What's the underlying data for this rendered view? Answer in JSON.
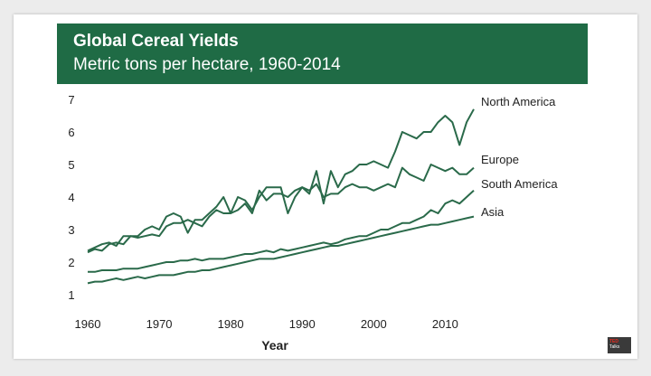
{
  "chart_data": {
    "type": "line",
    "title": "Global Cereal Yields",
    "subtitle": "Metric tons per hectare, 1960-2014",
    "xlabel": "Year",
    "ylabel": "",
    "xlim": [
      1960,
      2014
    ],
    "ylim": [
      0.5,
      7.2
    ],
    "x_ticks": [
      1960,
      1970,
      1980,
      1990,
      2000,
      2010
    ],
    "y_ticks": [
      1,
      2,
      3,
      4,
      5,
      6,
      7
    ],
    "grid": false,
    "legend": "labels at line ends",
    "line_color": "#2a6a4a",
    "x": [
      1960,
      1961,
      1962,
      1963,
      1964,
      1965,
      1966,
      1967,
      1968,
      1969,
      1970,
      1971,
      1972,
      1973,
      1974,
      1975,
      1976,
      1977,
      1978,
      1979,
      1980,
      1981,
      1982,
      1983,
      1984,
      1985,
      1986,
      1987,
      1988,
      1989,
      1990,
      1991,
      1992,
      1993,
      1994,
      1995,
      1996,
      1997,
      1998,
      1999,
      2000,
      2001,
      2002,
      2003,
      2004,
      2005,
      2006,
      2007,
      2008,
      2009,
      2010,
      2011,
      2012,
      2013,
      2014
    ],
    "series": [
      {
        "name": "North America",
        "values": [
          2.35,
          2.45,
          2.55,
          2.6,
          2.5,
          2.8,
          2.8,
          2.8,
          3.0,
          3.1,
          3.0,
          3.4,
          3.5,
          3.4,
          2.9,
          3.3,
          3.3,
          3.5,
          3.7,
          4.0,
          3.5,
          4.0,
          3.9,
          3.6,
          4.0,
          4.3,
          4.3,
          4.3,
          3.5,
          4.0,
          4.3,
          4.1,
          4.8,
          3.8,
          4.8,
          4.3,
          4.7,
          4.8,
          5.0,
          5.0,
          5.1,
          5.0,
          4.9,
          5.4,
          6.0,
          5.9,
          5.8,
          6.0,
          6.0,
          6.3,
          6.5,
          6.3,
          5.6,
          6.3,
          6.7
        ]
      },
      {
        "name": "Europe",
        "values": [
          2.3,
          2.4,
          2.35,
          2.55,
          2.6,
          2.55,
          2.8,
          2.75,
          2.8,
          2.85,
          2.8,
          3.1,
          3.2,
          3.2,
          3.3,
          3.2,
          3.1,
          3.4,
          3.6,
          3.5,
          3.5,
          3.6,
          3.8,
          3.5,
          4.2,
          3.9,
          4.1,
          4.1,
          4.0,
          4.2,
          4.3,
          4.2,
          4.4,
          4.0,
          4.1,
          4.1,
          4.3,
          4.4,
          4.3,
          4.3,
          4.2,
          4.3,
          4.4,
          4.3,
          4.9,
          4.7,
          4.6,
          4.5,
          5.0,
          4.9,
          4.8,
          4.9,
          4.7,
          4.7,
          4.9
        ]
      },
      {
        "name": "South America",
        "values": [
          1.7,
          1.7,
          1.75,
          1.75,
          1.75,
          1.8,
          1.8,
          1.8,
          1.85,
          1.9,
          1.95,
          2.0,
          2.0,
          2.05,
          2.05,
          2.1,
          2.05,
          2.1,
          2.1,
          2.1,
          2.15,
          2.2,
          2.25,
          2.25,
          2.3,
          2.35,
          2.3,
          2.4,
          2.35,
          2.4,
          2.45,
          2.5,
          2.55,
          2.6,
          2.55,
          2.6,
          2.7,
          2.75,
          2.8,
          2.8,
          2.9,
          3.0,
          3.0,
          3.1,
          3.2,
          3.2,
          3.3,
          3.4,
          3.6,
          3.5,
          3.8,
          3.9,
          3.8,
          4.0,
          4.2
        ]
      },
      {
        "name": "Asia",
        "values": [
          1.35,
          1.4,
          1.4,
          1.45,
          1.5,
          1.45,
          1.5,
          1.55,
          1.5,
          1.55,
          1.6,
          1.6,
          1.6,
          1.65,
          1.7,
          1.7,
          1.75,
          1.75,
          1.8,
          1.85,
          1.9,
          1.95,
          2.0,
          2.05,
          2.1,
          2.1,
          2.1,
          2.15,
          2.2,
          2.25,
          2.3,
          2.35,
          2.4,
          2.45,
          2.5,
          2.5,
          2.55,
          2.6,
          2.65,
          2.7,
          2.75,
          2.8,
          2.85,
          2.9,
          2.95,
          3.0,
          3.05,
          3.1,
          3.15,
          3.15,
          3.2,
          3.25,
          3.3,
          3.35,
          3.4
        ]
      }
    ]
  },
  "logo_text": [
    "TED",
    "Talks"
  ]
}
